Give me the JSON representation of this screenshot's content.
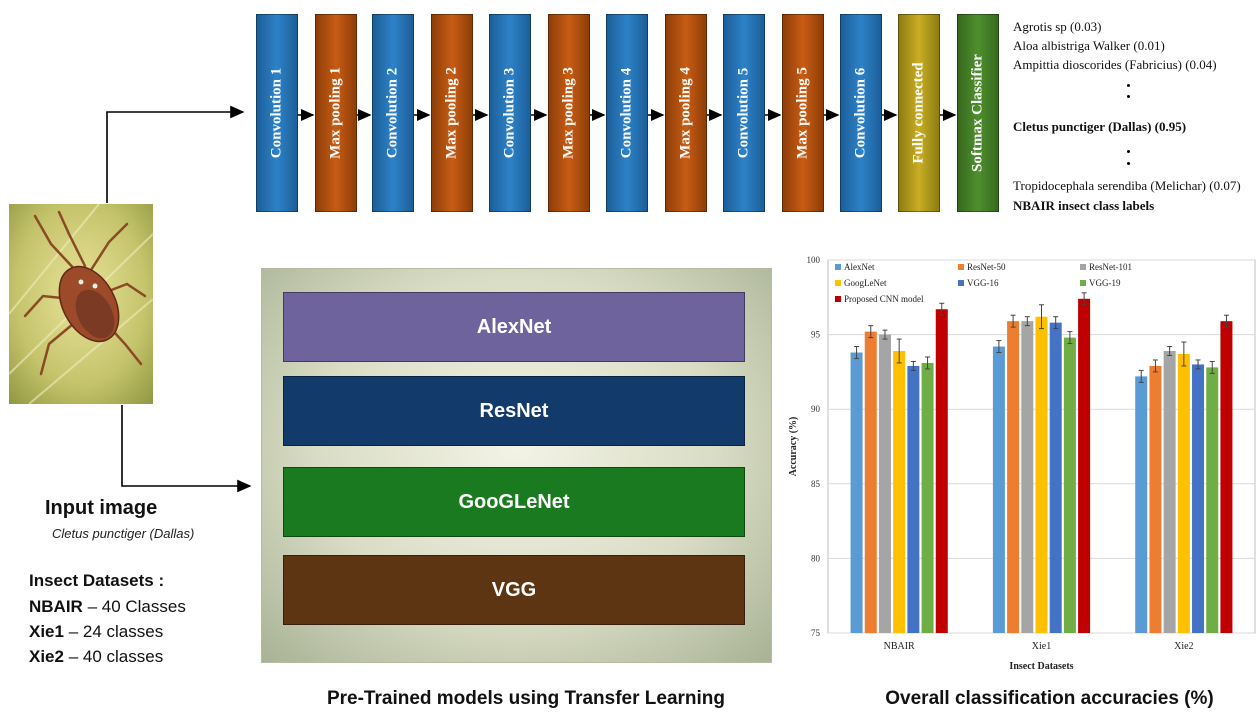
{
  "cnn": {
    "layers": [
      {
        "label": "Convolution 1",
        "kind": "conv"
      },
      {
        "label": "Max pooling 1",
        "kind": "pool"
      },
      {
        "label": "Convolution 2",
        "kind": "conv"
      },
      {
        "label": "Max pooling 2",
        "kind": "pool"
      },
      {
        "label": "Convolution 3",
        "kind": "conv"
      },
      {
        "label": "Max pooling 3",
        "kind": "pool"
      },
      {
        "label": "Convolution 4",
        "kind": "conv"
      },
      {
        "label": "Max pooling 4",
        "kind": "pool"
      },
      {
        "label": "Convolution 5",
        "kind": "conv"
      },
      {
        "label": "Max pooling 5",
        "kind": "pool"
      },
      {
        "label": "Convolution 6",
        "kind": "conv"
      },
      {
        "label": "Fully connected",
        "kind": "fc"
      },
      {
        "label": "Softmax Classifier",
        "kind": "soft"
      }
    ],
    "outputs": {
      "line1": "Agrotis sp (0.03)",
      "line2": "Aloa albistriga Walker (0.01)",
      "line3": "Ampittia dioscorides (Fabricius) (0.04)",
      "highlight": "Cletus punctiger (Dallas) (0.95)",
      "line5": "Tropidocephala serendiba (Melichar) (0.07)",
      "caption": "NBAIR insect class labels"
    }
  },
  "input": {
    "title": "Input image",
    "species": "Cletus punctiger (Dallas)",
    "datasets_title": "Insect Datasets :",
    "datasets": [
      {
        "name": "NBAIR",
        "desc": " – 40 Classes"
      },
      {
        "name": "Xie1",
        "desc": " – 24 classes"
      },
      {
        "name": "Xie2",
        "desc": " – 40 classes"
      }
    ]
  },
  "pretrained": {
    "models": [
      {
        "label": "AlexNet",
        "color": "#6f639d"
      },
      {
        "label": "ResNet",
        "color": "#123b6b"
      },
      {
        "label": "GooGLeNet",
        "color": "#1a7a1f"
      },
      {
        "label": "VGG",
        "color": "#5e3512"
      }
    ],
    "caption": "Pre-Trained  models using Transfer Learning"
  },
  "chart_caption": "Overall classification  accuracies (%)",
  "chart_data": {
    "type": "bar",
    "categories": [
      "NBAIR",
      "Xie1",
      "Xie2"
    ],
    "series": [
      {
        "name": "AlexNet",
        "color": "#5b9bd5",
        "values": [
          93.8,
          94.2,
          92.2
        ],
        "errors": [
          0.4,
          0.4,
          0.4
        ]
      },
      {
        "name": "ResNet-50",
        "color": "#ed7d31",
        "values": [
          95.2,
          95.9,
          92.9
        ],
        "errors": [
          0.4,
          0.4,
          0.4
        ]
      },
      {
        "name": "ResNet-101",
        "color": "#a5a5a5",
        "values": [
          95.0,
          95.9,
          93.9
        ],
        "errors": [
          0.3,
          0.3,
          0.3
        ]
      },
      {
        "name": "GoogLeNet",
        "color": "#ffc000",
        "values": [
          93.9,
          96.2,
          93.7
        ],
        "errors": [
          0.8,
          0.8,
          0.8
        ]
      },
      {
        "name": "VGG-16",
        "color": "#4472c4",
        "values": [
          92.9,
          95.8,
          93.0
        ],
        "errors": [
          0.3,
          0.4,
          0.3
        ]
      },
      {
        "name": "VGG-19",
        "color": "#70ad47",
        "values": [
          93.1,
          94.8,
          92.8
        ],
        "errors": [
          0.4,
          0.4,
          0.4
        ]
      },
      {
        "name": "Proposed CNN model",
        "color": "#c00000",
        "values": [
          96.7,
          97.4,
          95.9
        ],
        "errors": [
          0.4,
          0.4,
          0.4
        ]
      }
    ],
    "xlabel": "Insect Datasets",
    "ylabel": "Accuracy (%)",
    "ylim": [
      75,
      100
    ],
    "yticks": [
      75,
      80,
      85,
      90,
      95,
      100
    ],
    "legend": "top-left"
  }
}
